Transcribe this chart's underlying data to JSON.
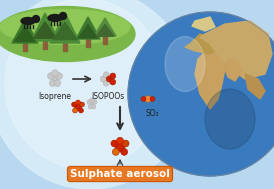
{
  "title": "Sulphate aerosol",
  "title_bg": "#e87722",
  "title_color": "#ffffff",
  "title_fontsize": 7.5,
  "label_isoprene": "Isoprene",
  "label_isopoos": "ISOPOOs",
  "label_so2": "SO₂",
  "label_fontsize": 5.5,
  "bg_sky_top": "#b8d8f0",
  "bg_sky_bottom": "#daeef9",
  "bg_glow_color": "#cce8f8",
  "arrow_color": "#333333",
  "figsize": [
    2.74,
    1.89
  ],
  "dpi": 100,
  "molecule_grey_color": "#c8c8c8",
  "molecule_red_color": "#cc2200",
  "molecule_orange_color": "#dd6600",
  "molecule_white_color": "#eeeeee",
  "grass_color": "#7ab648",
  "tree_dark": "#3a6b2a",
  "tree_mid": "#4e8c39",
  "earth_ocean": "#3a7bbf",
  "earth_land": "#c8a060"
}
